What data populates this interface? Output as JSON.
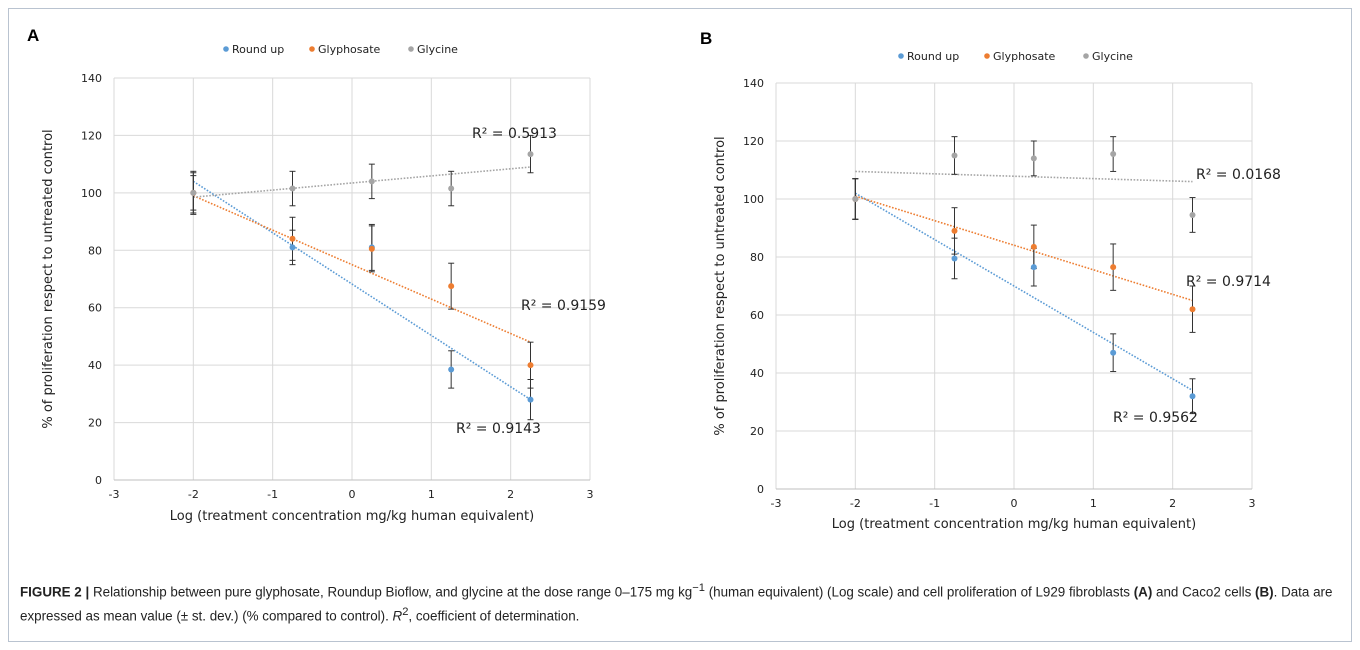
{
  "chart_data": [
    {
      "panel": "A",
      "type": "scatter",
      "xlabel": "Log (treatment concentration mg/kg human equivalent)",
      "ylabel": "% of proliferation respect to untreated control",
      "xlim": [
        -3,
        3
      ],
      "ylim": [
        0,
        140
      ],
      "xticks": [
        -3,
        -2,
        -1,
        0,
        1,
        2,
        3
      ],
      "yticks": [
        0,
        20,
        40,
        60,
        80,
        100,
        120,
        140
      ],
      "grid": true,
      "legend_position": "top",
      "series": [
        {
          "name": "Round up",
          "color": "#5b9bd5",
          "x": [
            -2,
            -0.75,
            0.25,
            1.25,
            2.25
          ],
          "y": [
            100,
            81,
            81,
            38.5,
            28
          ],
          "err": [
            7.5,
            6,
            8,
            6.5,
            7
          ],
          "trend": [
            [
              -2,
              104
            ],
            [
              2.25,
              28
            ]
          ],
          "r2": "R² = 0.9143"
        },
        {
          "name": "Glyphosate",
          "color": "#ed7d31",
          "x": [
            -2,
            -0.75,
            0.25,
            1.25,
            2.25
          ],
          "y": [
            100,
            84,
            80.5,
            67.5,
            40
          ],
          "err": [
            7,
            7.5,
            8,
            8,
            8
          ],
          "trend": [
            [
              -2,
              99
            ],
            [
              2.25,
              48
            ]
          ],
          "r2": "R² = 0.9159"
        },
        {
          "name": "Glycine",
          "color": "#a5a5a5",
          "x": [
            -2,
            -0.75,
            0.25,
            1.25,
            2.25
          ],
          "y": [
            100,
            101.5,
            104,
            101.5,
            113.5
          ],
          "err": [
            6,
            6,
            6,
            6,
            6.5
          ],
          "trend": [
            [
              -2,
              98.5
            ],
            [
              2.25,
              109
            ]
          ],
          "r2": "R² = 0.5913"
        }
      ]
    },
    {
      "panel": "B",
      "type": "scatter",
      "xlabel": "Log (treatment concentration mg/kg human equivalent)",
      "ylabel": "% of proliferation respect to untreated control",
      "xlim": [
        -3,
        3
      ],
      "ylim": [
        0,
        140
      ],
      "xticks": [
        -3,
        -2,
        -1,
        0,
        1,
        2,
        3
      ],
      "yticks": [
        0,
        20,
        40,
        60,
        80,
        100,
        120,
        140
      ],
      "grid": true,
      "legend_position": "top",
      "series": [
        {
          "name": "Round up",
          "color": "#5b9bd5",
          "x": [
            -2,
            -0.75,
            0.25,
            1.25,
            2.25
          ],
          "y": [
            100,
            79.5,
            76.5,
            47,
            32
          ],
          "err": [
            7,
            7,
            6.5,
            6.5,
            6
          ],
          "trend": [
            [
              -2,
              102
            ],
            [
              2.25,
              34
            ]
          ],
          "r2": "R² = 0.9562"
        },
        {
          "name": "Glyphosate",
          "color": "#ed7d31",
          "x": [
            -2,
            -0.75,
            0.25,
            1.25,
            2.25
          ],
          "y": [
            100,
            89,
            83.5,
            76.5,
            62
          ],
          "err": [
            7,
            8,
            7.5,
            8,
            8
          ],
          "trend": [
            [
              -2,
              101
            ],
            [
              2.25,
              65
            ]
          ],
          "r2": "R² = 0.9714"
        },
        {
          "name": "Glycine",
          "color": "#a5a5a5",
          "x": [
            -2,
            -0.75,
            0.25,
            1.25,
            2.25
          ],
          "y": [
            100,
            115,
            114,
            115.5,
            94.5
          ],
          "err": [
            7,
            6.5,
            6,
            6,
            6
          ],
          "trend": [
            [
              -2,
              109.5
            ],
            [
              2.25,
              106
            ]
          ],
          "r2": "R² = 0.0168"
        }
      ]
    }
  ],
  "caption": {
    "label": "FIGURE 2 |",
    "part1": " Relationship between pure glyphosate, Roundup Bioflow, and glycine at the dose range 0–175 mg kg",
    "sup1": "−1",
    "part2": " (human equivalent) (Log scale) and cell proliferation of L929 fibroblasts ",
    "ref_a": "(A)",
    "part3": " and Caco2 cells ",
    "ref_b": "(B)",
    "part4": ". Data are expressed as mean value (± st. dev.) (% compared to control). ",
    "r2_symbol": "R",
    "r2_sup": "2",
    "part5": ", coefficient of determination."
  }
}
